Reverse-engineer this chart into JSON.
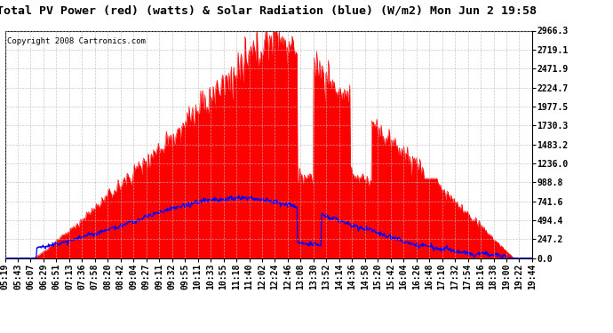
{
  "title": "Total PV Power (red) (watts) & Solar Radiation (blue) (W/m2) Mon Jun 2 19:58",
  "copyright_text": "Copyright 2008 Cartronics.com",
  "y_right_ticks": [
    0.0,
    247.2,
    494.4,
    741.6,
    988.8,
    1236.0,
    1483.2,
    1730.3,
    1977.5,
    2224.7,
    2471.9,
    2719.1,
    2966.3
  ],
  "x_tick_labels": [
    "05:19",
    "05:43",
    "06:07",
    "06:29",
    "06:51",
    "07:13",
    "07:36",
    "07:58",
    "08:20",
    "08:42",
    "09:04",
    "09:27",
    "09:11",
    "09:32",
    "09:55",
    "10:11",
    "10:33",
    "10:55",
    "11:18",
    "11:40",
    "12:02",
    "12:24",
    "12:46",
    "13:08",
    "13:30",
    "13:52",
    "14:14",
    "14:36",
    "14:58",
    "15:20",
    "15:42",
    "16:04",
    "16:26",
    "16:48",
    "17:10",
    "17:32",
    "17:54",
    "18:16",
    "18:38",
    "19:00",
    "19:22",
    "19:44"
  ],
  "pv_color": "#FF0000",
  "solar_color": "#0000FF",
  "background_color": "#FFFFFF",
  "grid_color": "#BBBBBB",
  "title_fontsize": 9.5,
  "copyright_fontsize": 6.5,
  "tick_fontsize": 7,
  "y_max": 2966.3,
  "pv_peak": 2966.3,
  "solar_peak": 780.0,
  "n_points": 860
}
